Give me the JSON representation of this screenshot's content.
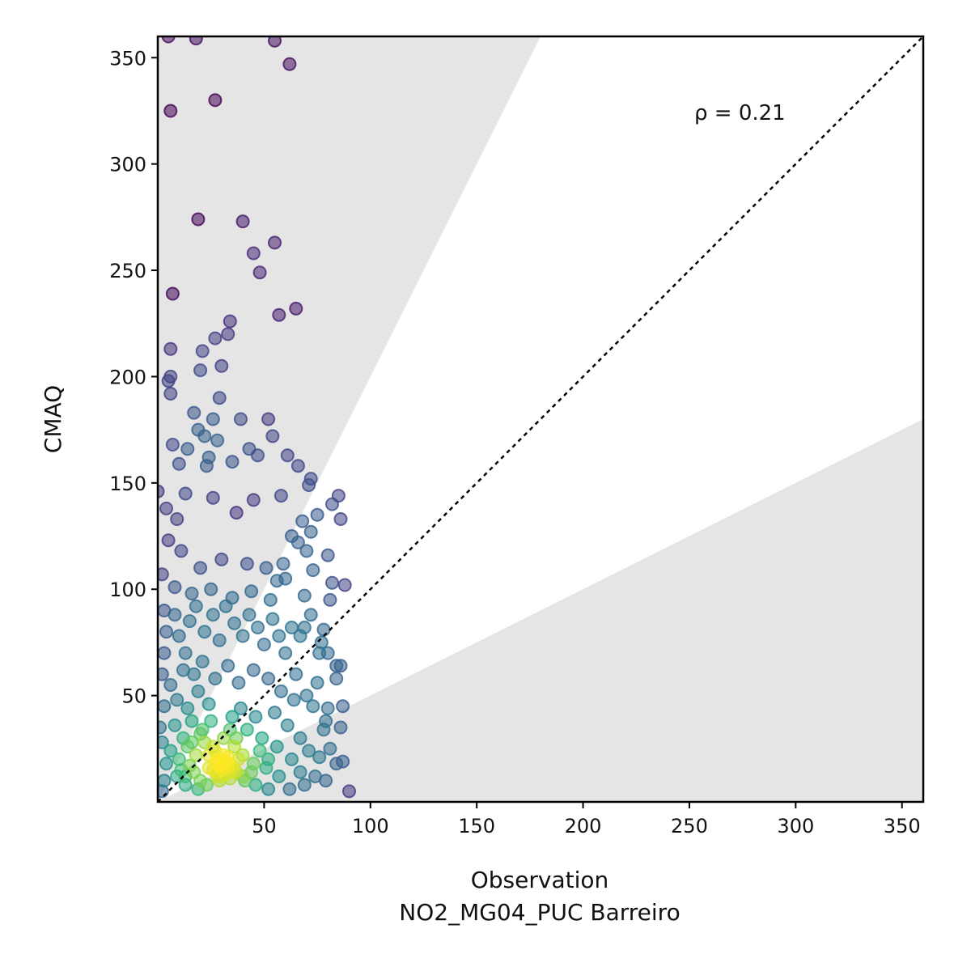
{
  "chart_data": {
    "type": "scatter",
    "title": "",
    "xlabel": "Observation",
    "xlabel_sub": "NO2_MG04_PUC Barreiro",
    "ylabel": "CMAQ",
    "xlim": [
      0,
      360
    ],
    "ylim": [
      0,
      360
    ],
    "x_ticks": [
      50,
      100,
      150,
      200,
      250,
      300,
      350
    ],
    "y_ticks": [
      50,
      100,
      150,
      200,
      250,
      300,
      350
    ],
    "x_tick_labels": [
      "50",
      "100",
      "150",
      "200",
      "250",
      "300",
      "350"
    ],
    "y_tick_labels": [
      "50",
      "100",
      "150",
      "200",
      "250",
      "300",
      "350"
    ],
    "annotation": "ρ = 0.21",
    "grid": false,
    "legend": "none",
    "reference_line": {
      "style": "dotted",
      "slope": 1,
      "color": "#000000"
    },
    "shaded_factor_band": {
      "upper_slope": 2,
      "lower_slope": 0.5,
      "outside_color": "#e5e5e5"
    },
    "colormap": "viridis (point density)",
    "colors": {
      "low_density": "#440154",
      "mid_density": "#21918c",
      "high_density": "#fde725"
    },
    "points": [
      [
        5,
        360
      ],
      [
        18,
        359
      ],
      [
        55,
        358
      ],
      [
        62,
        347
      ],
      [
        6,
        325
      ],
      [
        27,
        330
      ],
      [
        19,
        274
      ],
      [
        40,
        273
      ],
      [
        55,
        263
      ],
      [
        45,
        258
      ],
      [
        48,
        249
      ],
      [
        65,
        232
      ],
      [
        57,
        229
      ],
      [
        34,
        226
      ],
      [
        7,
        239
      ],
      [
        33,
        220
      ],
      [
        27,
        218
      ],
      [
        21,
        212
      ],
      [
        6,
        213
      ],
      [
        6,
        200
      ],
      [
        5,
        198
      ],
      [
        6,
        192
      ],
      [
        20,
        203
      ],
      [
        30,
        205
      ],
      [
        29,
        190
      ],
      [
        17,
        183
      ],
      [
        39,
        180
      ],
      [
        52,
        180
      ],
      [
        26,
        180
      ],
      [
        7,
        168
      ],
      [
        19,
        175
      ],
      [
        22,
        172
      ],
      [
        14,
        166
      ],
      [
        28,
        170
      ],
      [
        43,
        166
      ],
      [
        54,
        172
      ],
      [
        10,
        159
      ],
      [
        24,
        162
      ],
      [
        35,
        160
      ],
      [
        47,
        163
      ],
      [
        61,
        163
      ],
      [
        23,
        158
      ],
      [
        66,
        158
      ],
      [
        72,
        152
      ],
      [
        71,
        149
      ],
      [
        0,
        146
      ],
      [
        13,
        145
      ],
      [
        26,
        143
      ],
      [
        45,
        142
      ],
      [
        58,
        144
      ],
      [
        75,
        135
      ],
      [
        85,
        144
      ],
      [
        82,
        140
      ],
      [
        86,
        133
      ],
      [
        68,
        132
      ],
      [
        72,
        127
      ],
      [
        4,
        138
      ],
      [
        9,
        133
      ],
      [
        37,
        136
      ],
      [
        63,
        125
      ],
      [
        66,
        122
      ],
      [
        5,
        123
      ],
      [
        70,
        118
      ],
      [
        80,
        116
      ],
      [
        73,
        109
      ],
      [
        60,
        105
      ],
      [
        82,
        103
      ],
      [
        88,
        102
      ],
      [
        81,
        95
      ],
      [
        69,
        97
      ],
      [
        59,
        112
      ],
      [
        2,
        107
      ],
      [
        11,
        118
      ],
      [
        20,
        110
      ],
      [
        30,
        114
      ],
      [
        42,
        112
      ],
      [
        51,
        110
      ],
      [
        56,
        104
      ],
      [
        8,
        101
      ],
      [
        16,
        98
      ],
      [
        25,
        100
      ],
      [
        35,
        96
      ],
      [
        44,
        99
      ],
      [
        53,
        95
      ],
      [
        72,
        88
      ],
      [
        69,
        82
      ],
      [
        78,
        81
      ],
      [
        77,
        75
      ],
      [
        67,
        78
      ],
      [
        76,
        70
      ],
      [
        80,
        70
      ],
      [
        84,
        64
      ],
      [
        86,
        64
      ],
      [
        75,
        56
      ],
      [
        84,
        58
      ],
      [
        65,
        60
      ],
      [
        70,
        50
      ],
      [
        73,
        45
      ],
      [
        80,
        44
      ],
      [
        87,
        45
      ],
      [
        79,
        38
      ],
      [
        86,
        35
      ],
      [
        78,
        34
      ],
      [
        81,
        25
      ],
      [
        76,
        21
      ],
      [
        84,
        18
      ],
      [
        87,
        19
      ],
      [
        90,
        5
      ],
      [
        79,
        10
      ],
      [
        74,
        12
      ],
      [
        69,
        8
      ],
      [
        62,
        6
      ],
      [
        3,
        90
      ],
      [
        4,
        80
      ],
      [
        3,
        70
      ],
      [
        2,
        60
      ],
      [
        6,
        55
      ],
      [
        3,
        45
      ],
      [
        1,
        35
      ],
      [
        2,
        28
      ],
      [
        4,
        18
      ],
      [
        3,
        10
      ],
      [
        2,
        5
      ],
      [
        8,
        88
      ],
      [
        10,
        78
      ],
      [
        13,
        70
      ],
      [
        15,
        85
      ],
      [
        18,
        92
      ],
      [
        22,
        80
      ],
      [
        26,
        88
      ],
      [
        29,
        76
      ],
      [
        32,
        92
      ],
      [
        36,
        84
      ],
      [
        40,
        78
      ],
      [
        43,
        88
      ],
      [
        47,
        82
      ],
      [
        50,
        74
      ],
      [
        54,
        86
      ],
      [
        57,
        78
      ],
      [
        60,
        70
      ],
      [
        63,
        82
      ],
      [
        12,
        62
      ],
      [
        17,
        60
      ],
      [
        21,
        66
      ],
      [
        27,
        58
      ],
      [
        33,
        64
      ],
      [
        38,
        56
      ],
      [
        45,
        62
      ],
      [
        52,
        58
      ],
      [
        58,
        52
      ],
      [
        64,
        48
      ],
      [
        9,
        48
      ],
      [
        14,
        44
      ],
      [
        19,
        52
      ],
      [
        24,
        46
      ],
      [
        39,
        44
      ],
      [
        46,
        40
      ],
      [
        55,
        42
      ],
      [
        61,
        36
      ],
      [
        67,
        30
      ],
      [
        71,
        24
      ],
      [
        8,
        36
      ],
      [
        12,
        30
      ],
      [
        16,
        38
      ],
      [
        21,
        34
      ],
      [
        25,
        38
      ],
      [
        35,
        40
      ],
      [
        42,
        34
      ],
      [
        49,
        30
      ],
      [
        56,
        26
      ],
      [
        63,
        20
      ],
      [
        67,
        14
      ],
      [
        6,
        24
      ],
      [
        10,
        20
      ],
      [
        14,
        26
      ],
      [
        18,
        22
      ],
      [
        22,
        28
      ],
      [
        27,
        24
      ],
      [
        31,
        30
      ],
      [
        36,
        26
      ],
      [
        40,
        22
      ],
      [
        45,
        18
      ],
      [
        51,
        16
      ],
      [
        57,
        12
      ],
      [
        9,
        12
      ],
      [
        13,
        8
      ],
      [
        17,
        14
      ],
      [
        20,
        10
      ],
      [
        24,
        16
      ],
      [
        28,
        12
      ],
      [
        33,
        18
      ],
      [
        37,
        14
      ],
      [
        41,
        10
      ],
      [
        46,
        8
      ],
      [
        52,
        6
      ],
      [
        30,
        15
      ],
      [
        31,
        18
      ],
      [
        32,
        13
      ],
      [
        29,
        17
      ],
      [
        33,
        16
      ],
      [
        30,
        20
      ],
      [
        34,
        11
      ],
      [
        28,
        14
      ],
      [
        31,
        16
      ],
      [
        32,
        19
      ],
      [
        26,
        15
      ],
      [
        35,
        17
      ],
      [
        30,
        12
      ],
      [
        33,
        21
      ],
      [
        27,
        18
      ],
      [
        36,
        15
      ],
      [
        29,
        10
      ],
      [
        31,
        22
      ],
      [
        34,
        14
      ],
      [
        28,
        20
      ],
      [
        11,
        15
      ],
      [
        13,
        12
      ],
      [
        15,
        17
      ],
      [
        24,
        22
      ],
      [
        26,
        26
      ],
      [
        38,
        20
      ],
      [
        23,
        8
      ],
      [
        19,
        6
      ],
      [
        40,
        12
      ],
      [
        44,
        14
      ],
      [
        16,
        28
      ],
      [
        20,
        32
      ],
      [
        34,
        34
      ],
      [
        37,
        30
      ],
      [
        48,
        24
      ],
      [
        52,
        20
      ]
    ]
  }
}
